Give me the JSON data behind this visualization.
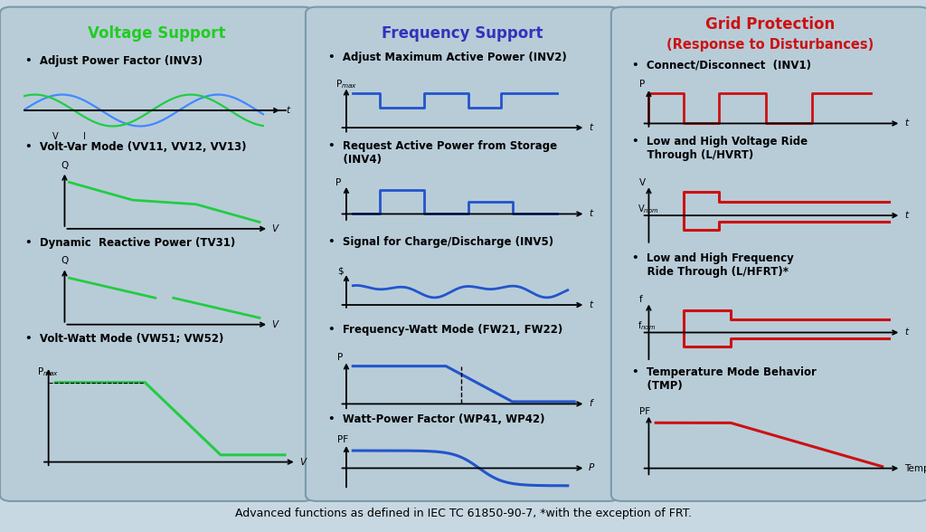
{
  "fig_bg": "#c8d8e2",
  "panel_bg": "#b8ccd8",
  "panel_edge": "#7a9aaa",
  "green": "#22cc44",
  "blue": "#2255cc",
  "red": "#cc1111",
  "black": "#000000",
  "title_left": "Voltage Support",
  "title_left_color": "#22cc22",
  "title_mid": "Frequency Support",
  "title_mid_color": "#3333bb",
  "title_right_1": "Grid Protection",
  "title_right_2": "(Response to Disturbances)",
  "title_right_color": "#cc1111",
  "footer": "Advanced functions as defined in IEC TC 61850-90-7, *with the exception of FRT."
}
